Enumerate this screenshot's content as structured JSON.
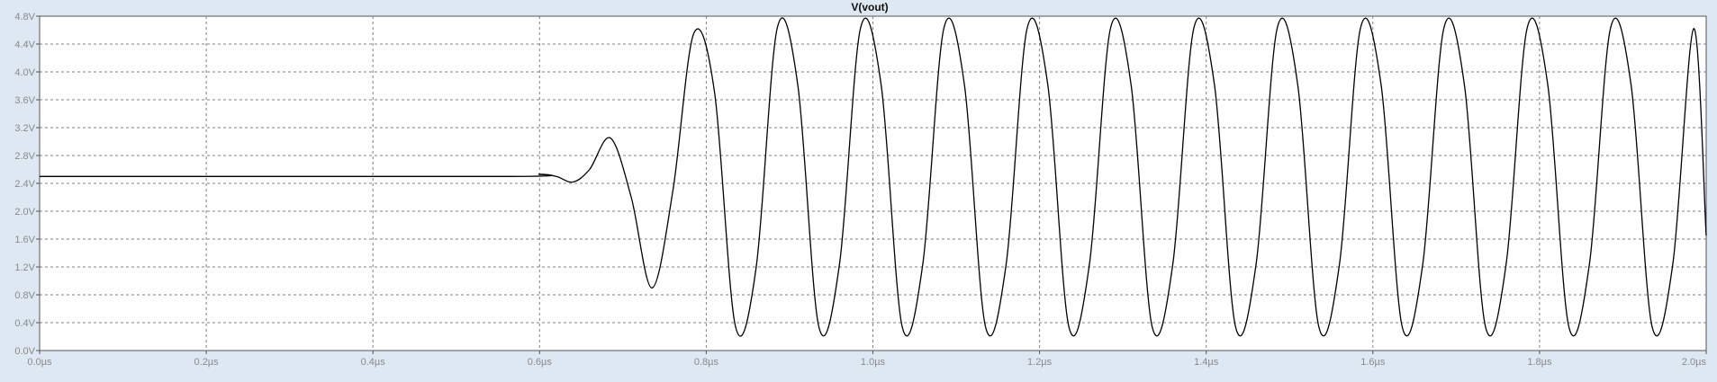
{
  "colors": {
    "background": "#dde8f2",
    "plot_area": "#ffffff",
    "grid": "#808080",
    "trace": "#000000",
    "tick_text": "#8a8a8a"
  },
  "chart_data": {
    "type": "line",
    "title": "V(vout)",
    "xlabel": "",
    "ylabel": "",
    "x_unit": "µs",
    "y_unit": "V",
    "xlim": [
      0.0,
      2.0
    ],
    "ylim": [
      0.0,
      4.8
    ],
    "grid": true,
    "grid_style": "dashed",
    "x_ticks": [
      "0.0µs",
      "0.2µs",
      "0.4µs",
      "0.6µs",
      "0.8µs",
      "1.0µs",
      "1.2µs",
      "1.4µs",
      "1.6µs",
      "1.8µs",
      "2.0µs"
    ],
    "x_tick_values": [
      0.0,
      0.2,
      0.4,
      0.6,
      0.8,
      1.0,
      1.2,
      1.4,
      1.6,
      1.8,
      2.0
    ],
    "y_ticks": [
      "0.0V",
      "0.4V",
      "0.8V",
      "1.2V",
      "1.6V",
      "2.0V",
      "2.4V",
      "2.8V",
      "3.2V",
      "3.6V",
      "4.0V",
      "4.4V",
      "4.8V"
    ],
    "y_tick_values": [
      0.0,
      0.4,
      0.8,
      1.2,
      1.6,
      2.0,
      2.4,
      2.8,
      3.2,
      3.6,
      4.0,
      4.4,
      4.8
    ],
    "series": [
      {
        "x": [
          0.0,
          0.56,
          0.6,
          0.62,
          0.64,
          0.66,
          0.685,
          0.71,
          0.735,
          0.76,
          0.785,
          0.81,
          0.835,
          0.86,
          0.885,
          0.91,
          0.935,
          0.96,
          0.985,
          1.01,
          1.035,
          1.06,
          1.085,
          1.11,
          1.135,
          1.16,
          1.185,
          1.21,
          1.235,
          1.26,
          1.285,
          1.31,
          1.335,
          1.36,
          1.385,
          1.41,
          1.435,
          1.46,
          1.485,
          1.51,
          1.535,
          1.56,
          1.585,
          1.61,
          1.635,
          1.66,
          1.685,
          1.71,
          1.735,
          1.76,
          1.785,
          1.81,
          1.835,
          1.86,
          1.885,
          1.91,
          1.935,
          1.96,
          1.985,
          2.0
        ],
        "y": [
          2.5,
          2.5,
          2.53,
          2.5,
          2.42,
          2.6,
          3.05,
          2.2,
          0.9,
          2.3,
          4.55,
          3.7,
          0.35,
          1.2,
          4.62,
          3.8,
          0.35,
          1.25,
          4.62,
          3.8,
          0.35,
          1.25,
          4.62,
          3.8,
          0.35,
          1.25,
          4.62,
          3.8,
          0.35,
          1.25,
          4.62,
          3.8,
          0.35,
          1.25,
          4.62,
          3.8,
          0.35,
          1.25,
          4.62,
          3.8,
          0.35,
          1.25,
          4.62,
          3.8,
          0.35,
          1.25,
          4.62,
          3.8,
          0.35,
          1.25,
          4.62,
          3.8,
          0.35,
          1.25,
          4.62,
          3.8,
          0.35,
          1.25,
          4.62,
          1.65
        ]
      }
    ]
  }
}
